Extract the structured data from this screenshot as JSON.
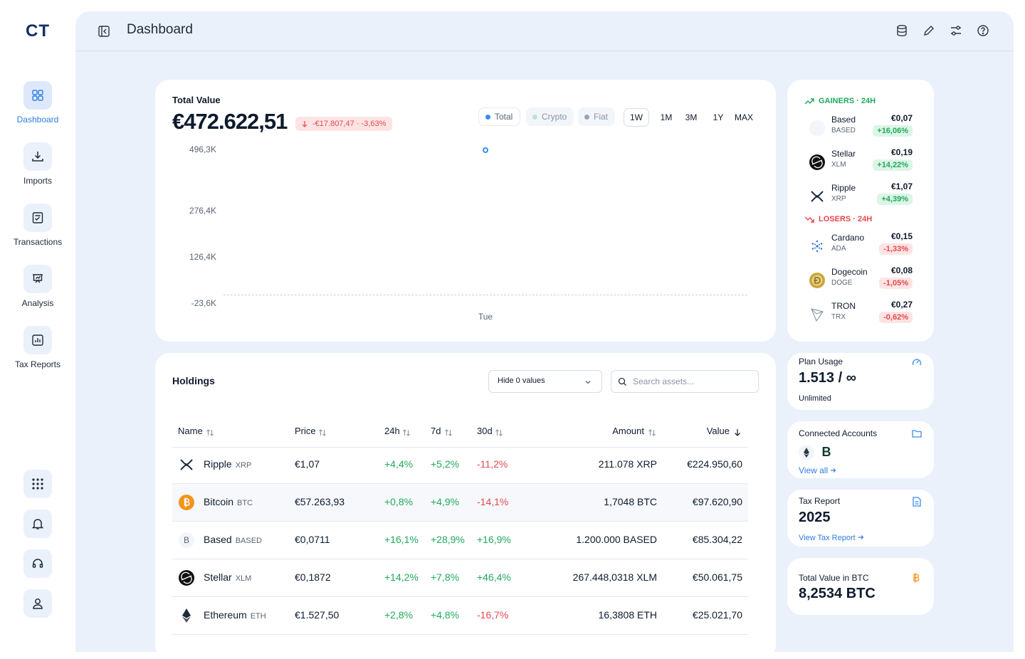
{
  "app": {
    "logo": "CT",
    "nav": [
      "Dashboard",
      "Imports",
      "Transactions",
      "Analysis",
      "Tax Reports"
    ]
  },
  "header": {
    "title": "Dashboard"
  },
  "total_value": {
    "label": "Total Value",
    "amount": "€472.622,51",
    "change": "-€17.807,47 · -3,63%",
    "legend": [
      "Total",
      "Crypto",
      "Fiat"
    ],
    "ranges": [
      "1W",
      "1M",
      "3M",
      "1Y",
      "MAX"
    ],
    "yticks": [
      "496,3K",
      "276,4K",
      "126,4K",
      "-23,6K"
    ],
    "xticks": [
      "Tue"
    ]
  },
  "holdings": {
    "title": "Holdings",
    "filter": "Hide 0 values",
    "search_placeholder": "Search assets...",
    "columns": [
      "Name",
      "Price",
      "24h",
      "7d",
      "30d",
      "Amount",
      "Value"
    ],
    "rows": [
      {
        "name": "Ripple",
        "symbol": "XRP",
        "price": "€1,07",
        "d24": "+4,4%",
        "d7": "+5,2%",
        "d30": "-11,2%",
        "amount": "211.078 XRP",
        "value": "€224.950,60"
      },
      {
        "name": "Bitcoin",
        "symbol": "BTC",
        "price": "€57.263,93",
        "d24": "+0,8%",
        "d7": "+4,9%",
        "d30": "-14,1%",
        "amount": "1,7048 BTC",
        "value": "€97.620,90"
      },
      {
        "name": "Based",
        "symbol": "BASED",
        "price": "€0,0711",
        "d24": "+16,1%",
        "d7": "+28,9%",
        "d30": "+16,9%",
        "amount": "1.200.000 BASED",
        "value": "€85.304,22"
      },
      {
        "name": "Stellar",
        "symbol": "XLM",
        "price": "€0,1872",
        "d24": "+14,2%",
        "d7": "+7,8%",
        "d30": "+46,4%",
        "amount": "267.448,0318 XLM",
        "value": "€50.061,75"
      },
      {
        "name": "Ethereum",
        "symbol": "ETH",
        "price": "€1.527,50",
        "d24": "+2,8%",
        "d7": "+4,8%",
        "d30": "-16,7%",
        "amount": "16,3808 ETH",
        "value": "€25.021,70"
      }
    ]
  },
  "movers": {
    "gainers_title": "GAINERS · 24H",
    "gainers": [
      {
        "name": "Based",
        "symbol": "BASED",
        "price": "€0,07",
        "change": "+16,06%"
      },
      {
        "name": "Stellar",
        "symbol": "XLM",
        "price": "€0,19",
        "change": "+14,22%"
      },
      {
        "name": "Ripple",
        "symbol": "XRP",
        "price": "€1,07",
        "change": "+4,39%"
      }
    ],
    "losers_title": "LOSERS · 24H",
    "losers": [
      {
        "name": "Cardano",
        "symbol": "ADA",
        "price": "€0,15",
        "change": "-1,33%"
      },
      {
        "name": "Dogecoin",
        "symbol": "DOGE",
        "price": "€0,08",
        "change": "-1,05%"
      },
      {
        "name": "TRON",
        "symbol": "TRX",
        "price": "€0,27",
        "change": "-0,62%"
      }
    ]
  },
  "plan_usage": {
    "title": "Plan Usage",
    "value": "1.513 / ∞",
    "note": "Unlimited"
  },
  "connected_accounts": {
    "title": "Connected Accounts",
    "badge": "B",
    "link": "View all"
  },
  "tax_report": {
    "title": "Tax Report",
    "year": "2025",
    "link": "View Tax Report"
  },
  "btc_value": {
    "title": "Total Value in BTC",
    "value": "8,2534 BTC"
  }
}
